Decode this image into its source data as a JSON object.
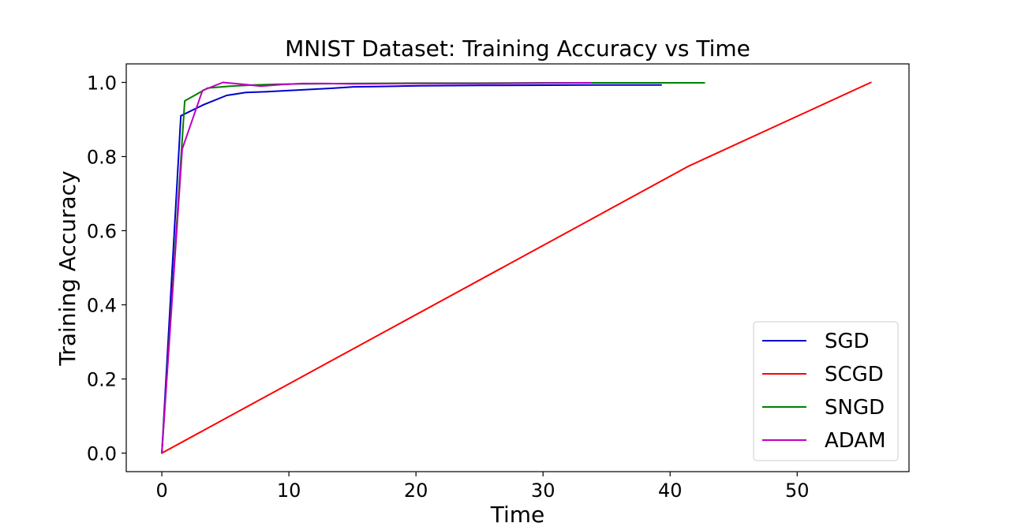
{
  "chart_data": {
    "type": "line",
    "title": "MNIST Dataset:  Training Accuracy vs Time",
    "xlabel": "Time",
    "ylabel": "Training Accuracy",
    "xlim": [
      -2.8,
      58.8
    ],
    "ylim": [
      -0.05,
      1.05
    ],
    "xticks": [
      0,
      10,
      20,
      30,
      40,
      50
    ],
    "xtick_labels": [
      "0",
      "10",
      "20",
      "30",
      "40",
      "50"
    ],
    "yticks": [
      0.0,
      0.2,
      0.4,
      0.6,
      0.8,
      1.0
    ],
    "ytick_labels": [
      "0.0",
      "0.2",
      "0.4",
      "0.6",
      "0.8",
      "1.0"
    ],
    "grid": false,
    "legend_position": "lower-right",
    "series": [
      {
        "name": "SGD",
        "color": "#0000cc",
        "x": [
          0,
          1.5,
          3.3,
          5.1,
          6.6,
          8.3,
          10.0,
          13.3,
          15.1,
          16.8,
          18.6,
          20.4,
          25.4,
          34.2,
          39.3
        ],
        "y": [
          0.0,
          0.91,
          0.94,
          0.965,
          0.973,
          0.975,
          0.978,
          0.984,
          0.988,
          0.989,
          0.99,
          0.991,
          0.992,
          0.993,
          0.993
        ]
      },
      {
        "name": "SCGD",
        "color": "#ff0000",
        "x": [
          0,
          41.5,
          55.8
        ],
        "y": [
          0.0,
          0.775,
          1.0
        ]
      },
      {
        "name": "SNGD",
        "color": "#008000",
        "x": [
          0,
          1.8,
          3.6,
          5.4,
          7.2,
          9.0,
          10.8,
          15.0,
          20.0,
          25.0,
          30.0,
          35.0,
          42.7
        ],
        "y": [
          0.0,
          0.95,
          0.985,
          0.99,
          0.993,
          0.995,
          0.996,
          0.997,
          0.998,
          0.998,
          0.999,
          0.999,
          0.999
        ]
      },
      {
        "name": "ADAM",
        "color": "#bf00bf",
        "x": [
          0,
          1.6,
          3.2,
          4.8,
          6.4,
          7.8,
          9.4,
          11.0,
          13.0,
          15.0,
          20.0,
          25.0,
          30.0,
          33.8
        ],
        "y": [
          0.0,
          0.82,
          0.978,
          1.0,
          0.995,
          0.99,
          0.994,
          0.997,
          0.997,
          0.996,
          0.997,
          0.997,
          0.998,
          0.999
        ]
      }
    ]
  }
}
